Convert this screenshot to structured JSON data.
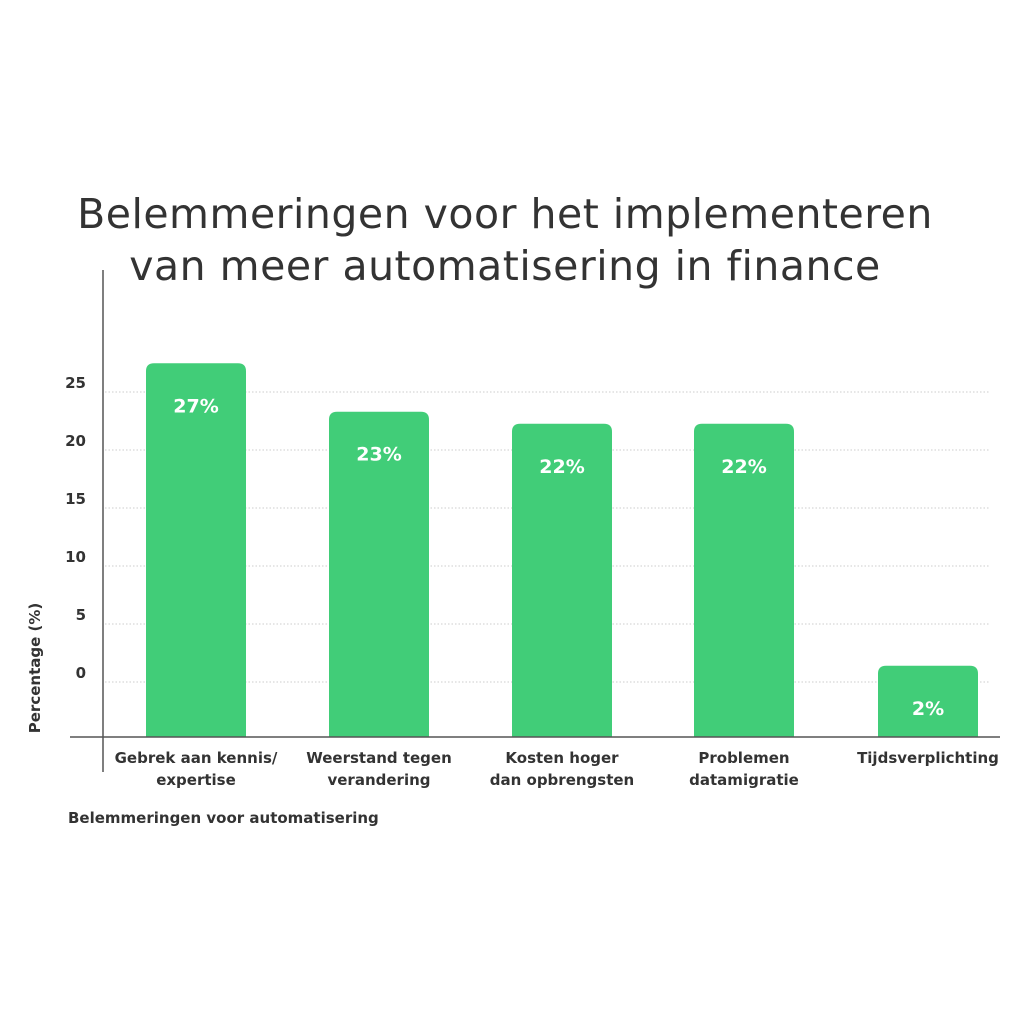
{
  "chart_data": {
    "type": "bar",
    "title": "Belemmeringen voor het implementeren van meer automatisering in finance",
    "title_lines": [
      "Belemmeringen voor het implementeren",
      "van meer automatisering in finance"
    ],
    "xlabel": "Belemmeringen voor automatisering",
    "ylabel": "Percentage (%)",
    "categories": [
      [
        "Gebrek aan kennis/",
        "expertise"
      ],
      [
        "Weerstand tegen",
        "verandering"
      ],
      [
        "Kosten hoger",
        "dan opbrengsten"
      ],
      [
        "Problemen",
        "datamigratie"
      ],
      [
        "Tijdsverplichting"
      ]
    ],
    "values": [
      27,
      23,
      22,
      22,
      2
    ],
    "data_labels": [
      "27%",
      "23%",
      "22%",
      "22%",
      "2%"
    ],
    "yticks": [
      0,
      5,
      10,
      15,
      20,
      25
    ],
    "ylim": [
      0,
      25
    ],
    "grid": true,
    "bar_color": "#41CD78"
  }
}
